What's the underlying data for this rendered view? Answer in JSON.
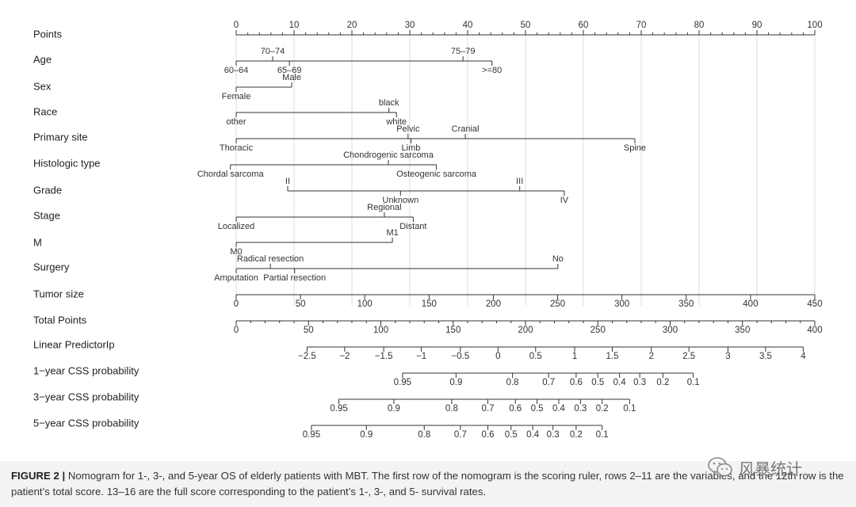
{
  "caption": {
    "label": "FIGURE 2 |",
    "text": " Nomogram for 1-, 3-, and 5-year OS of elderly patients with MBT. The first row of the nomogram is the scoring ruler, rows 2–11 are the variables, and the 12th row is the patient’s total score. 13–16 are the full score corresponding to the patient’s 1-, 3-, and 5- survival rates."
  },
  "watermark": {
    "text": "风暴统计"
  },
  "chart_data": {
    "type": "nomogram",
    "title": "",
    "points_axis": {
      "label": "Points",
      "min": 0,
      "max": 100,
      "major_step": 10,
      "minor_step": 2
    },
    "grid": true,
    "variables": [
      {
        "label": "Age",
        "points": [
          {
            "name": "60–64",
            "value": 0,
            "side": "below"
          },
          {
            "name": "70–74",
            "value": 6.3,
            "side": "above"
          },
          {
            "name": "65–69",
            "value": 9.2,
            "side": "below"
          },
          {
            "name": "75–79",
            "value": 39.2,
            "side": "above"
          },
          {
            "name": ">=80",
            "value": 44.2,
            "side": "below"
          }
        ]
      },
      {
        "label": "Sex",
        "points": [
          {
            "name": "Female",
            "value": 0,
            "side": "below"
          },
          {
            "name": "Male",
            "value": 9.6,
            "side": "above"
          }
        ]
      },
      {
        "label": "Race",
        "points": [
          {
            "name": "other",
            "value": 0,
            "side": "below"
          },
          {
            "name": "black",
            "value": 26.4,
            "side": "above"
          },
          {
            "name": "white",
            "value": 27.7,
            "side": "below"
          }
        ]
      },
      {
        "label": "Primary site",
        "points": [
          {
            "name": "Thoracic",
            "value": 0,
            "side": "below"
          },
          {
            "name": "Pelvic",
            "value": 29.7,
            "side": "above"
          },
          {
            "name": "Limb",
            "value": 30.2,
            "side": "below"
          },
          {
            "name": "Cranial",
            "value": 39.6,
            "side": "above"
          },
          {
            "name": "Spine",
            "value": 68.9,
            "side": "below"
          }
        ]
      },
      {
        "label": "Histologic type",
        "points": [
          {
            "name": "Chordal sarcoma",
            "value": -1,
            "side": "below"
          },
          {
            "name": "Chondrogenic sarcoma",
            "value": 26.3,
            "side": "above"
          },
          {
            "name": "Osteogenic sarcoma",
            "value": 34.6,
            "side": "below"
          }
        ]
      },
      {
        "label": "Grade",
        "points": [
          {
            "name": "II",
            "value": 8.9,
            "side": "above"
          },
          {
            "name": "Unknown",
            "value": 28.4,
            "side": "below"
          },
          {
            "name": "III",
            "value": 49.0,
            "side": "above"
          },
          {
            "name": "IV",
            "value": 56.7,
            "side": "below"
          }
        ]
      },
      {
        "label": "Stage",
        "points": [
          {
            "name": "Localized",
            "value": 0,
            "side": "below"
          },
          {
            "name": "Regional",
            "value": 25.6,
            "side": "above"
          },
          {
            "name": "Distant",
            "value": 30.6,
            "side": "below"
          }
        ]
      },
      {
        "label": "M",
        "points": [
          {
            "name": "M0",
            "value": 0,
            "side": "below"
          },
          {
            "name": "M1",
            "value": 27.0,
            "side": "above"
          }
        ]
      },
      {
        "label": "Surgery",
        "points": [
          {
            "name": "Amputation",
            "value": 0,
            "side": "below"
          },
          {
            "name": "Radical resection",
            "value": 5.9,
            "side": "above"
          },
          {
            "name": "Partial resection",
            "value": 10.1,
            "side": "below"
          },
          {
            "name": "No",
            "value": 55.6,
            "side": "above"
          }
        ]
      }
    ],
    "tumor_size": {
      "label": "Tumor size",
      "min": 0,
      "max": 450,
      "ticks": [
        0,
        50,
        100,
        150,
        200,
        250,
        300,
        350,
        400,
        450
      ]
    },
    "total_points": {
      "label": "Total Points",
      "min": 0,
      "max": 400,
      "major_step": 50,
      "minor_step": 10
    },
    "linear_predictor": {
      "label": "Linear PredictorIp",
      "ticks": [
        "-2.5",
        "-2",
        "-1.5",
        "-1",
        "-0.5",
        "0",
        "0.5",
        "1",
        "1.5",
        "2",
        "2.5",
        "3",
        "3.5",
        "4"
      ],
      "total_points_at_ticks": [
        49,
        75,
        102,
        128,
        155,
        181,
        207,
        234,
        260,
        287,
        313,
        340,
        366,
        392
      ]
    },
    "probability_scales": [
      {
        "label": "1−year CSS probability",
        "ticks": [
          "0.95",
          "0.9",
          "0.8",
          "0.7",
          "0.6",
          "0.5",
          "0.4",
          "0.3",
          "0.2",
          "0.1"
        ],
        "total_points_at_ticks": [
          115,
          152,
          191,
          216,
          235,
          250,
          265,
          279,
          295,
          316
        ]
      },
      {
        "label": "3−year CSS probability",
        "ticks": [
          "0.95",
          "0.9",
          "0.8",
          "0.7",
          "0.6",
          "0.5",
          "0.4",
          "0.3",
          "0.2",
          "0.1"
        ],
        "total_points_at_ticks": [
          71,
          109,
          149,
          174,
          193,
          208,
          223,
          238,
          253,
          272
        ]
      },
      {
        "label": "5−year CSS probability",
        "ticks": [
          "0.95",
          "0.9",
          "0.8",
          "0.7",
          "0.6",
          "0.5",
          "0.4",
          "0.3",
          "0.2",
          "0.1"
        ],
        "total_points_at_ticks": [
          52,
          90,
          130,
          155,
          174,
          190,
          205,
          219,
          235,
          253
        ]
      }
    ]
  }
}
